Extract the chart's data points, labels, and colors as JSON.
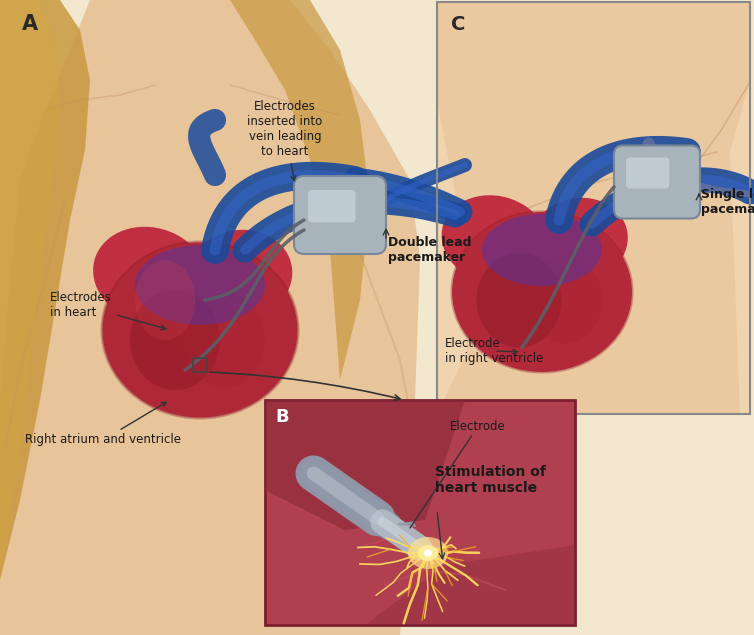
{
  "bg_color": "#f2e8d0",
  "skin_light": "#f0d4b0",
  "skin_mid": "#e8c49a",
  "skin_dark": "#d4a878",
  "skin_shadow": "#c49060",
  "hair_color": "#c89840",
  "heart_red": "#c03040",
  "heart_dark": "#8a1825",
  "heart_mid": "#a82030",
  "heart_light": "#d04050",
  "vein_blue": "#1a4a9a",
  "vein_mid": "#2255b0",
  "vein_purple": "#5535a0",
  "vein_light": "#3366cc",
  "device_gray": "#a8b4bc",
  "device_light": "#c8d4da",
  "device_shadow": "#788898",
  "electrode_wire": "#5a6068",
  "box_b_bg": "#b04050",
  "muscle_dark": "#8a2838",
  "spark_bright": "#ffe060",
  "spark_mid": "#f0b020",
  "spark_dim": "#c07818",
  "text_dark": "#1a1a1a",
  "arrow_color": "#333333",
  "label_A": "A",
  "label_B": "B",
  "label_C": "C",
  "text_electrodes_inserted": "Electrodes\ninserted into\nvein leading\nto heart",
  "text_electrodes_in_heart": "Electrodes\nin heart",
  "text_double_lead": "Double lead\npacemaker",
  "text_right_atrium": "Right atrium and ventricle",
  "text_electrode_b": "Electrode",
  "text_stimulation": "Stimulation of\nheart muscle",
  "text_single_lead": "Single lead\npacemaker",
  "text_electrode_ventricle": "Electrode\nin right ventricle"
}
